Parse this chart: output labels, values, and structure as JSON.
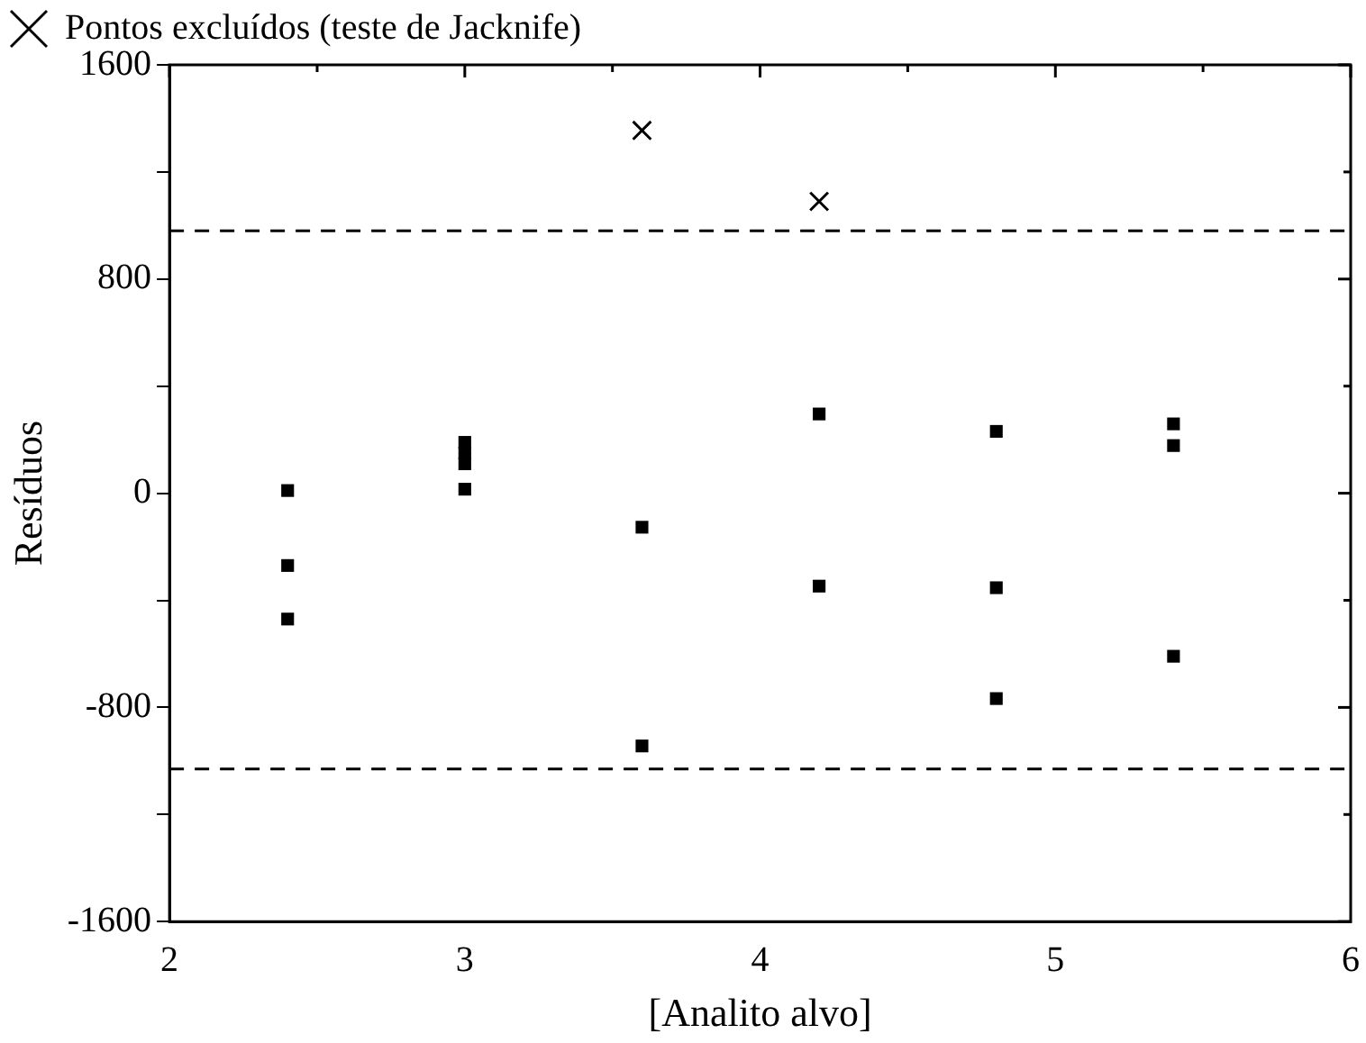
{
  "chart_data": {
    "type": "scatter",
    "xlabel": "[Analito alvo]",
    "ylabel": "Resíduos",
    "xlim": [
      2,
      6
    ],
    "ylim": [
      -1600,
      1600
    ],
    "xticks": [
      2,
      {
        "value": 2.5,
        "label": null
      },
      3,
      {
        "value": 3.5,
        "label": null
      },
      4,
      {
        "value": 4.5,
        "label": null
      },
      5,
      {
        "value": 5.5,
        "label": null
      },
      6
    ],
    "yticks": [
      -1600,
      {
        "value": -1200,
        "label": null
      },
      -800,
      {
        "value": -400,
        "label": null
      },
      0,
      {
        "value": 400,
        "label": null
      },
      800,
      {
        "value": 1200,
        "label": null
      },
      1600
    ],
    "grid": false,
    "legend": "top left",
    "marker": "square",
    "series": [
      {
        "color": "#000000",
        "x": [
          2.4,
          2.4,
          2.4,
          3,
          3,
          3,
          3,
          3.6,
          3.6,
          4.2,
          4.2,
          4.8,
          4.8,
          4.8,
          5.4,
          5.4,
          5.4
        ],
        "values": [
          10,
          -270,
          -470,
          190,
          150,
          110,
          15,
          -127,
          -944,
          296,
          -347,
          231,
          -353,
          -767,
          259,
          178,
          -609
        ]
      },
      {
        "name": "Pontos excluídos (teste de Jacknife)",
        "color": "#000000",
        "marker": "cross",
        "x": [
          3.6,
          4.2
        ],
        "values": [
          1355,
          1090
        ]
      }
    ],
    "ref_lines": [
      {
        "axis": "y",
        "value": 980,
        "color": "#000000",
        "line_style": "dashed"
      },
      {
        "axis": "y",
        "value": -1030,
        "color": "#000000",
        "line_style": "dashed"
      }
    ]
  }
}
